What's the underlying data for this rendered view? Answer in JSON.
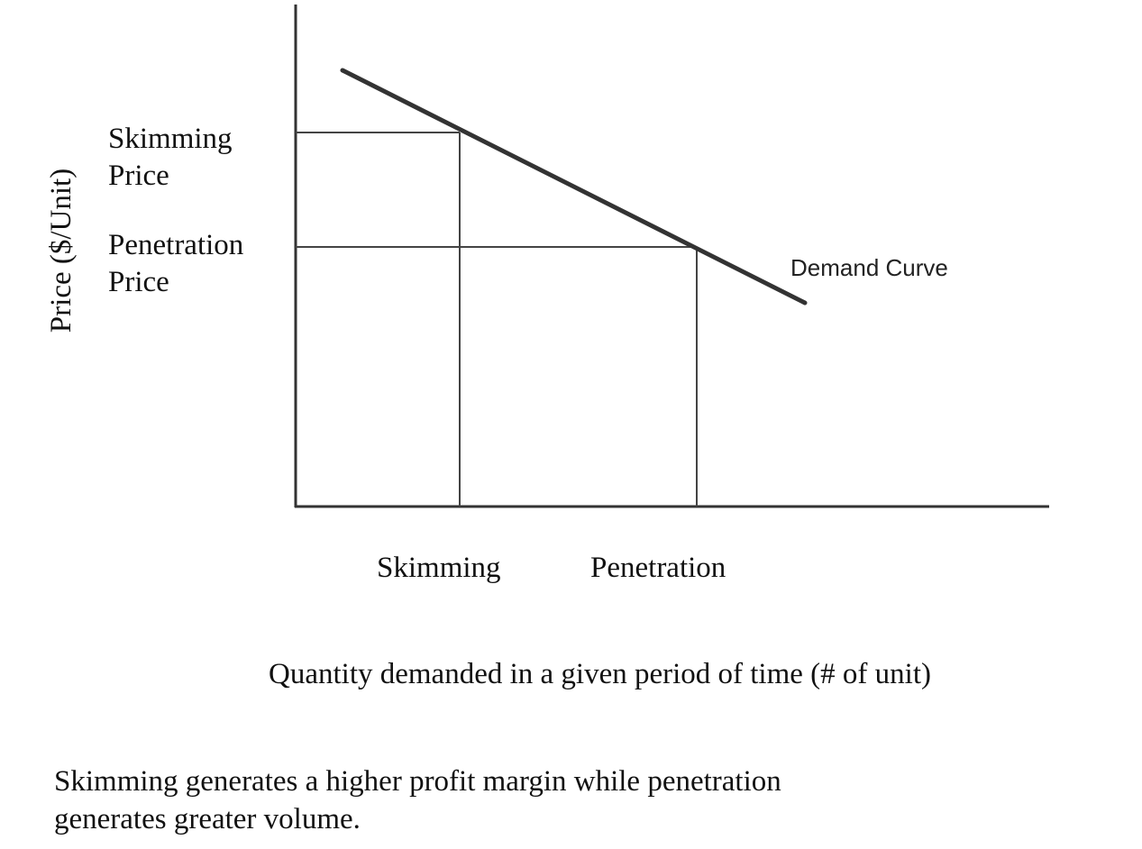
{
  "diagram": {
    "y_axis_label": "Price ($/Unit)",
    "price_labels": [
      [
        "Skimming",
        "Price"
      ],
      [
        "Penetration",
        "Price"
      ]
    ],
    "curve_label": "Demand Curve",
    "quantity_labels": [
      "Skimming",
      "Penetration"
    ],
    "x_axis_label": "Quantity demanded in a given period of time (# of unit)"
  },
  "caption": {
    "lines": [
      "Skimming generates a higher profit margin while penetration",
      "generates greater volume."
    ]
  }
}
